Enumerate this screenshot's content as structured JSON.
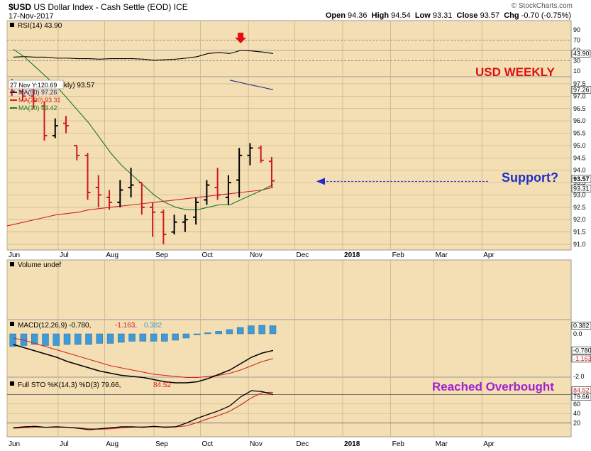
{
  "header": {
    "symbol": "$USD",
    "name": "US Dollar Index - Cash Settle (EOD)",
    "exchange": "ICE",
    "date": "17-Nov-2017",
    "copyright": "© StockCharts.com",
    "open_label": "Open",
    "open": "94.36",
    "high_label": "High",
    "high": "94.54",
    "low_label": "Low",
    "low": "93.31",
    "close_label": "Close",
    "close": "93.57",
    "chg_label": "Chg",
    "chg": "-0.70 (-0.75%)"
  },
  "colors": {
    "panel_bg": "#f4dfb4",
    "up_bar": "#000000",
    "down_bar": "#cc1b1b",
    "ma50": "#20208a",
    "ma200": "#d42020",
    "ma10": "#1e7a1e",
    "macd_hist": "#3f9ad6",
    "annotation_red": "#e01010",
    "annotation_blue": "#1f2fc8",
    "annotation_purple": "#a020d0"
  },
  "annotations": {
    "usd_weekly": "USD WEEKLY",
    "support": "Support?",
    "overbought": "Reached Overbought"
  },
  "tooltip": "27 Nov Y:120.69",
  "rsi_panel": {
    "label": "RSI(14) 43.90",
    "current": "43.90",
    "ticks": [
      "90",
      "70",
      "50",
      "30",
      "10"
    ]
  },
  "price_panel": {
    "title_fragment": "kly) 93.57",
    "legend": [
      {
        "label": "MA(50) 97.26"
      },
      {
        "label": "MA(200) 93.31"
      },
      {
        "label": "MA(10) 93.42"
      }
    ],
    "ticks": [
      "97.5",
      "97.0",
      "96.5",
      "96.0",
      "95.5",
      "95.0",
      "94.5",
      "94.0",
      "93.5",
      "93.0",
      "92.5",
      "92.0",
      "91.5",
      "91.0"
    ],
    "tags": {
      "ma50": "97.26",
      "close": "93.57",
      "ma200": "93.31"
    }
  },
  "volume_panel": {
    "label": "Volume undef"
  },
  "macd_panel": {
    "label_prefix": "MACD(12,26,9) -0.780,",
    "signal_value": "-1.163,",
    "hist_value": "0.382",
    "ticks": [
      "0.382",
      "0.0",
      "-0.780",
      "-1.163",
      "-2.0"
    ]
  },
  "sto_panel": {
    "label_prefix": "Full STO %K(14,3) %D(3) 79.66,",
    "d_value": "84.52",
    "ticks": [
      "84.52",
      "79.66",
      "60",
      "40",
      "20"
    ]
  },
  "x_axis": {
    "labels": [
      "Jun",
      "Jul",
      "Aug",
      "Sep",
      "Oct",
      "Nov",
      "Dec",
      "2018",
      "Feb",
      "Mar",
      "Apr"
    ]
  },
  "chart_data": [
    {
      "type": "line",
      "name_label": "RSI(14)",
      "x": [
        "2017-06-02",
        "2017-06-09",
        "2017-06-16",
        "2017-06-23",
        "2017-06-30",
        "2017-07-07",
        "2017-07-14",
        "2017-07-21",
        "2017-07-28",
        "2017-08-04",
        "2017-08-11",
        "2017-08-18",
        "2017-08-25",
        "2017-09-01",
        "2017-09-08",
        "2017-09-15",
        "2017-09-22",
        "2017-09-29",
        "2017-10-06",
        "2017-10-13",
        "2017-10-20",
        "2017-10-27",
        "2017-11-03",
        "2017-11-10",
        "2017-11-17"
      ],
      "series": [
        {
          "values": [
            37,
            38,
            37,
            37,
            35,
            35,
            34,
            34,
            33,
            34,
            34,
            34,
            33,
            31,
            32,
            33,
            35,
            38,
            44,
            46,
            44,
            50,
            49,
            47,
            43.9
          ]
        }
      ],
      "ylim": [
        0,
        100
      ],
      "reference_lines": [
        30,
        50,
        70
      ]
    },
    {
      "type": "bar",
      "style": "ohlc",
      "title": "$USD US Dollar Index - Cash Settle (EOD) ICE",
      "x": [
        "2017-06-02",
        "2017-06-09",
        "2017-06-16",
        "2017-06-23",
        "2017-06-30",
        "2017-07-07",
        "2017-07-14",
        "2017-07-21",
        "2017-07-28",
        "2017-08-04",
        "2017-08-11",
        "2017-08-18",
        "2017-08-25",
        "2017-09-01",
        "2017-09-08",
        "2017-09-15",
        "2017-09-22",
        "2017-09-29",
        "2017-10-06",
        "2017-10-13",
        "2017-10-20",
        "2017-10-27",
        "2017-11-03",
        "2017-11-10",
        "2017-11-17"
      ],
      "ohlc": [
        [
          97.5,
          97.7,
          97.0,
          97.2
        ],
        [
          97.2,
          97.4,
          96.8,
          97.0
        ],
        [
          97.0,
          97.6,
          96.5,
          96.8
        ],
        [
          96.6,
          96.8,
          95.2,
          95.4
        ],
        [
          95.4,
          96.1,
          95.3,
          95.8
        ],
        [
          95.9,
          96.2,
          95.5,
          95.8
        ],
        [
          95.0,
          95.0,
          94.4,
          94.6
        ],
        [
          94.6,
          94.7,
          92.8,
          93.1
        ],
        [
          93.3,
          93.8,
          92.5,
          93.0
        ],
        [
          92.9,
          93.2,
          92.4,
          92.7
        ],
        [
          92.7,
          93.6,
          92.5,
          93.2
        ],
        [
          93.3,
          94.1,
          92.9,
          93.4
        ],
        [
          93.5,
          93.5,
          92.2,
          92.5
        ],
        [
          92.5,
          92.7,
          91.3,
          92.3
        ],
        [
          92.3,
          92.4,
          91.0,
          91.4
        ],
        [
          91.5,
          92.2,
          91.4,
          91.9
        ],
        [
          91.9,
          92.2,
          91.5,
          92.0
        ],
        [
          92.1,
          92.9,
          91.8,
          92.7
        ],
        [
          92.8,
          93.6,
          92.6,
          93.4
        ],
        [
          93.3,
          94.1,
          92.8,
          93.0
        ],
        [
          92.9,
          93.8,
          92.6,
          93.5
        ],
        [
          93.6,
          94.9,
          92.9,
          94.6
        ],
        [
          94.6,
          95.1,
          94.2,
          94.9
        ],
        [
          94.9,
          95.0,
          94.3,
          94.4
        ],
        [
          94.36,
          94.54,
          93.31,
          93.57
        ]
      ],
      "ma10": [
        98.9,
        98.6,
        98.2,
        97.8,
        97.4,
        96.9,
        96.4,
        95.9,
        95.3,
        94.7,
        94.2,
        93.8,
        93.4,
        93.0,
        92.7,
        92.5,
        92.4,
        92.4,
        92.5,
        92.6,
        92.6,
        92.8,
        93.0,
        93.2,
        93.42
      ],
      "ma200": [
        91.8,
        91.9,
        92.0,
        92.1,
        92.2,
        92.25,
        92.3,
        92.4,
        92.45,
        92.5,
        92.55,
        92.6,
        92.65,
        92.7,
        92.75,
        92.8,
        92.85,
        92.9,
        92.95,
        93.0,
        93.05,
        93.1,
        93.15,
        93.2,
        93.31
      ],
      "ma50_tail": [
        97.65,
        97.55,
        97.45,
        97.36,
        97.26
      ],
      "ylim": [
        90.8,
        97.9
      ],
      "support_level": 93.55
    },
    {
      "type": "bar",
      "name_label": "MACD(12,26,9)",
      "x": [
        "2017-06-02",
        "2017-06-09",
        "2017-06-16",
        "2017-06-23",
        "2017-06-30",
        "2017-07-07",
        "2017-07-14",
        "2017-07-21",
        "2017-07-28",
        "2017-08-04",
        "2017-08-11",
        "2017-08-18",
        "2017-08-25",
        "2017-09-01",
        "2017-09-08",
        "2017-09-15",
        "2017-09-22",
        "2017-09-29",
        "2017-10-06",
        "2017-10-13",
        "2017-10-20",
        "2017-10-27",
        "2017-11-03",
        "2017-11-10",
        "2017-11-17"
      ],
      "histogram": [
        -0.6,
        -0.55,
        -0.5,
        -0.55,
        -0.55,
        -0.5,
        -0.5,
        -0.5,
        -0.45,
        -0.45,
        -0.4,
        -0.35,
        -0.35,
        -0.35,
        -0.35,
        -0.3,
        -0.2,
        -0.05,
        0.05,
        0.12,
        0.2,
        0.3,
        0.38,
        0.4,
        0.382
      ],
      "macd": [
        -0.5,
        -0.65,
        -0.8,
        -0.95,
        -1.1,
        -1.3,
        -1.45,
        -1.6,
        -1.75,
        -1.85,
        -1.95,
        -2.0,
        -2.05,
        -2.15,
        -2.25,
        -2.3,
        -2.3,
        -2.25,
        -2.1,
        -1.9,
        -1.7,
        -1.4,
        -1.1,
        -0.9,
        -0.78
      ],
      "signal": [
        -0.2,
        -0.3,
        -0.45,
        -0.6,
        -0.75,
        -0.9,
        -1.05,
        -1.2,
        -1.35,
        -1.5,
        -1.6,
        -1.7,
        -1.8,
        -1.9,
        -1.95,
        -2.0,
        -2.05,
        -2.05,
        -2.0,
        -1.95,
        -1.85,
        -1.7,
        -1.5,
        -1.3,
        -1.163
      ],
      "ylim": [
        -2.6,
        0.6
      ]
    },
    {
      "type": "line",
      "name_label": "Full STO %K(14,3) %D(3)",
      "x": [
        "2017-06-02",
        "2017-06-09",
        "2017-06-16",
        "2017-06-23",
        "2017-06-30",
        "2017-07-07",
        "2017-07-14",
        "2017-07-21",
        "2017-07-28",
        "2017-08-04",
        "2017-08-11",
        "2017-08-18",
        "2017-08-25",
        "2017-09-01",
        "2017-09-08",
        "2017-09-15",
        "2017-09-22",
        "2017-09-29",
        "2017-10-06",
        "2017-10-13",
        "2017-10-20",
        "2017-10-27",
        "2017-11-03",
        "2017-11-10",
        "2017-11-17"
      ],
      "series": [
        {
          "values": [
            10,
            12,
            13,
            11,
            12,
            11,
            9,
            6,
            8,
            10,
            12,
            12,
            11,
            13,
            11,
            12,
            20,
            30,
            38,
            46,
            56,
            75,
            88,
            86,
            79.66
          ]
        },
        {
          "values": [
            9,
            10,
            11,
            11,
            11,
            11,
            10,
            8,
            7,
            8,
            10,
            11,
            12,
            12,
            12,
            12,
            14,
            21,
            29,
            36,
            45,
            58,
            73,
            84,
            84.52
          ]
        }
      ],
      "ylim": [
        0,
        100
      ],
      "reference_lines": [
        20,
        80
      ]
    }
  ]
}
